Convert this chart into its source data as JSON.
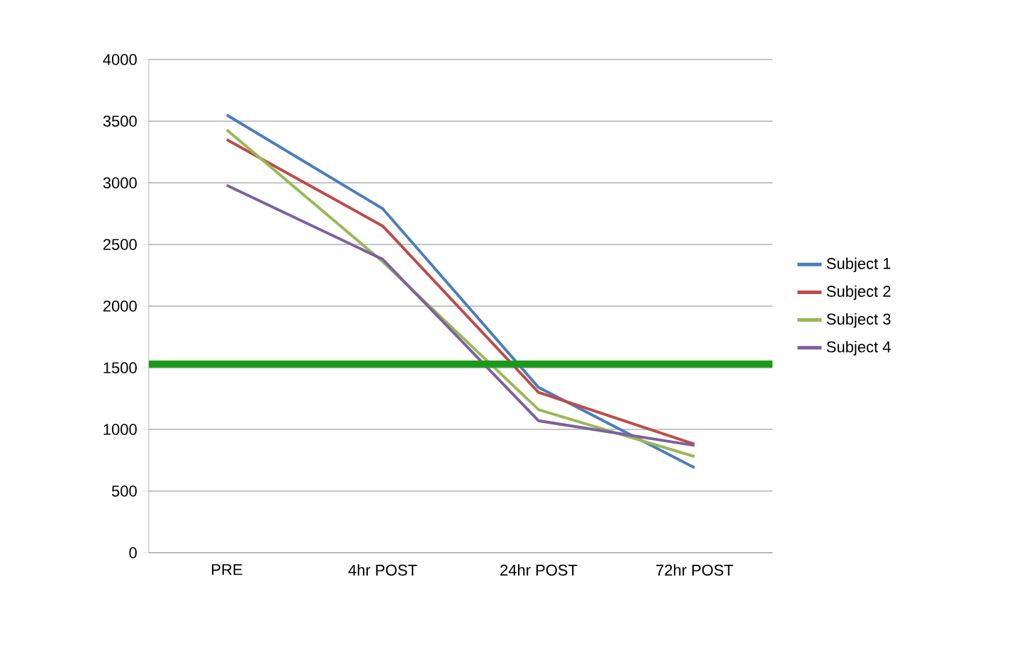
{
  "chart_data": {
    "type": "line",
    "categories": [
      "PRE",
      "4hr POST",
      "24hr POST",
      "72hr POST"
    ],
    "series": [
      {
        "name": "Subject 1",
        "color": "#4a7ebb",
        "values": [
          3550,
          2790,
          1340,
          690
        ]
      },
      {
        "name": "Subject 2",
        "color": "#be4b48",
        "values": [
          3350,
          2650,
          1300,
          880
        ]
      },
      {
        "name": "Subject 3",
        "color": "#98b954",
        "values": [
          3430,
          2360,
          1160,
          780
        ]
      },
      {
        "name": "Subject 4",
        "color": "#7d60a0",
        "values": [
          2980,
          2380,
          1070,
          870
        ]
      }
    ],
    "ylim": [
      0,
      4000
    ],
    "yticks": [
      0,
      500,
      1000,
      1500,
      2000,
      2500,
      3000,
      3500,
      4000
    ],
    "ref_lines": [
      {
        "axis": "y",
        "value": 1530,
        "color": "#1a9a1a"
      }
    ],
    "grid": "y",
    "legend": "right",
    "marker": "none",
    "line_style": "solid"
  }
}
